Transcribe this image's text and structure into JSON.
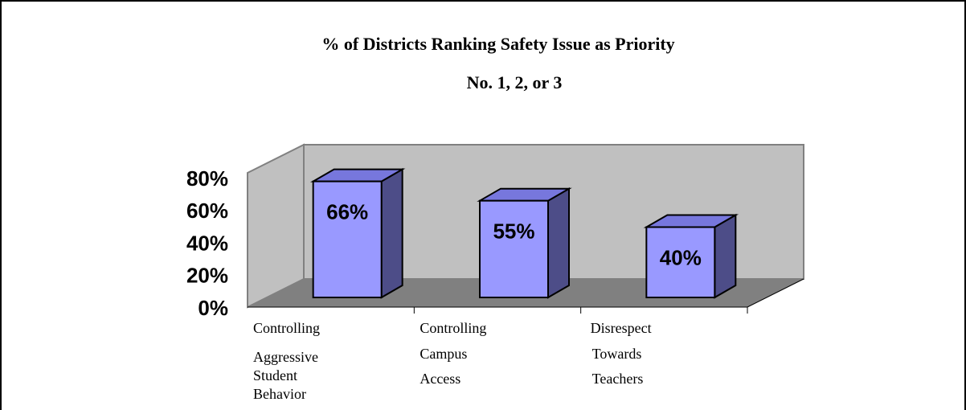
{
  "chart_data": {
    "type": "bar3d",
    "title": "% of Districts Ranking Safety Issue as Priority",
    "subtitle": "No. 1, 2, or 3",
    "categories": [
      [
        "Controlling",
        "Aggressive",
        "Student",
        "Behavior"
      ],
      [
        "Controlling",
        "Campus",
        "Access"
      ],
      [
        "Disrespect",
        "Towards",
        "Teachers"
      ]
    ],
    "values": [
      66,
      55,
      40
    ],
    "value_labels": [
      "66%",
      "55%",
      "40%"
    ],
    "color": "#9999ff",
    "ylim": [
      0,
      80
    ],
    "yticks": [
      {
        "value": 0,
        "label": "0%"
      },
      {
        "value": 20,
        "label": "20%"
      },
      {
        "value": 40,
        "label": "40%"
      },
      {
        "value": 60,
        "label": "60%"
      },
      {
        "value": 80,
        "label": "80%"
      }
    ]
  }
}
